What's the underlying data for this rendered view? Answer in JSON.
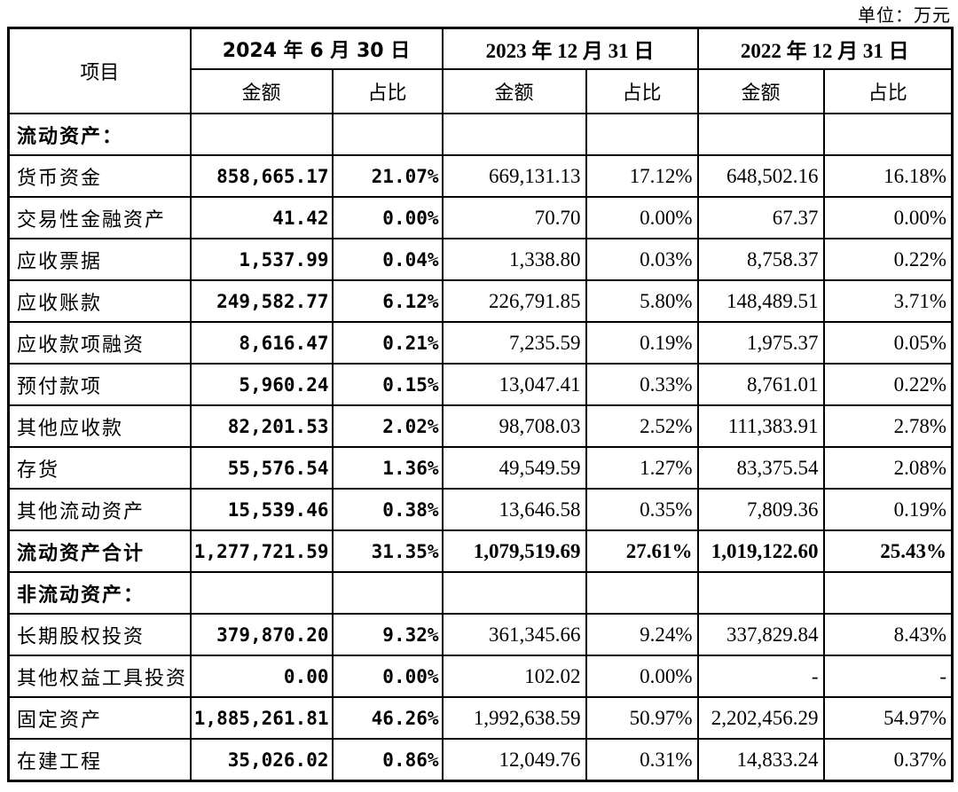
{
  "unit_label": "单位：万元",
  "table": {
    "item_header": "项目",
    "col_groups": [
      {
        "date": "2024 年 6 月 30 日",
        "amount_label": "金额",
        "ratio_label": "占比"
      },
      {
        "date": "2023 年 12 月 31 日",
        "amount_label": "金额",
        "ratio_label": "占比"
      },
      {
        "date": "2022 年 12 月 31 日",
        "amount_label": "金额",
        "ratio_label": "占比"
      }
    ],
    "rows": [
      {
        "type": "section",
        "label": "流动资产：",
        "values": [
          "",
          "",
          "",
          "",
          "",
          ""
        ]
      },
      {
        "type": "data",
        "label": "货币资金",
        "values": [
          "858,665.17",
          "21.07%",
          "669,131.13",
          "17.12%",
          "648,502.16",
          "16.18%"
        ]
      },
      {
        "type": "data",
        "label": "交易性金融资产",
        "values": [
          "41.42",
          "0.00%",
          "70.70",
          "0.00%",
          "67.37",
          "0.00%"
        ]
      },
      {
        "type": "data",
        "label": "应收票据",
        "values": [
          "1,537.99",
          "0.04%",
          "1,338.80",
          "0.03%",
          "8,758.37",
          "0.22%"
        ]
      },
      {
        "type": "data",
        "label": "应收账款",
        "values": [
          "249,582.77",
          "6.12%",
          "226,791.85",
          "5.80%",
          "148,489.51",
          "3.71%"
        ]
      },
      {
        "type": "data",
        "label": "应收款项融资",
        "values": [
          "8,616.47",
          "0.21%",
          "7,235.59",
          "0.19%",
          "1,975.37",
          "0.05%"
        ]
      },
      {
        "type": "data",
        "label": "预付款项",
        "values": [
          "5,960.24",
          "0.15%",
          "13,047.41",
          "0.33%",
          "8,761.01",
          "0.22%"
        ]
      },
      {
        "type": "data",
        "label": "其他应收款",
        "values": [
          "82,201.53",
          "2.02%",
          "98,708.03",
          "2.52%",
          "111,383.91",
          "2.78%"
        ]
      },
      {
        "type": "data",
        "label": "存货",
        "values": [
          "55,576.54",
          "1.36%",
          "49,549.59",
          "1.27%",
          "83,375.54",
          "2.08%"
        ]
      },
      {
        "type": "data",
        "label": "其他流动资产",
        "values": [
          "15,539.46",
          "0.38%",
          "13,646.58",
          "0.35%",
          "7,809.36",
          "0.19%"
        ]
      },
      {
        "type": "total",
        "label": "流动资产合计",
        "values": [
          "1,277,721.59",
          "31.35%",
          "1,079,519.69",
          "27.61%",
          "1,019,122.60",
          "25.43%"
        ]
      },
      {
        "type": "section",
        "label": "非流动资产：",
        "values": [
          "",
          "",
          "",
          "",
          "",
          ""
        ]
      },
      {
        "type": "data",
        "label": "长期股权投资",
        "values": [
          "379,870.20",
          "9.32%",
          "361,345.66",
          "9.24%",
          "337,829.84",
          "8.43%"
        ]
      },
      {
        "type": "data",
        "label": "其他权益工具投资",
        "values": [
          "0.00",
          "0.00%",
          "102.02",
          "0.00%",
          "-",
          "-"
        ]
      },
      {
        "type": "data",
        "label": "固定资产",
        "values": [
          "1,885,261.81",
          "46.26%",
          "1,992,638.59",
          "50.97%",
          "2,202,456.29",
          "54.97%"
        ]
      },
      {
        "type": "data",
        "label": "在建工程",
        "values": [
          "35,026.02",
          "0.86%",
          "12,049.76",
          "0.31%",
          "14,833.24",
          "0.37%"
        ]
      }
    ]
  }
}
